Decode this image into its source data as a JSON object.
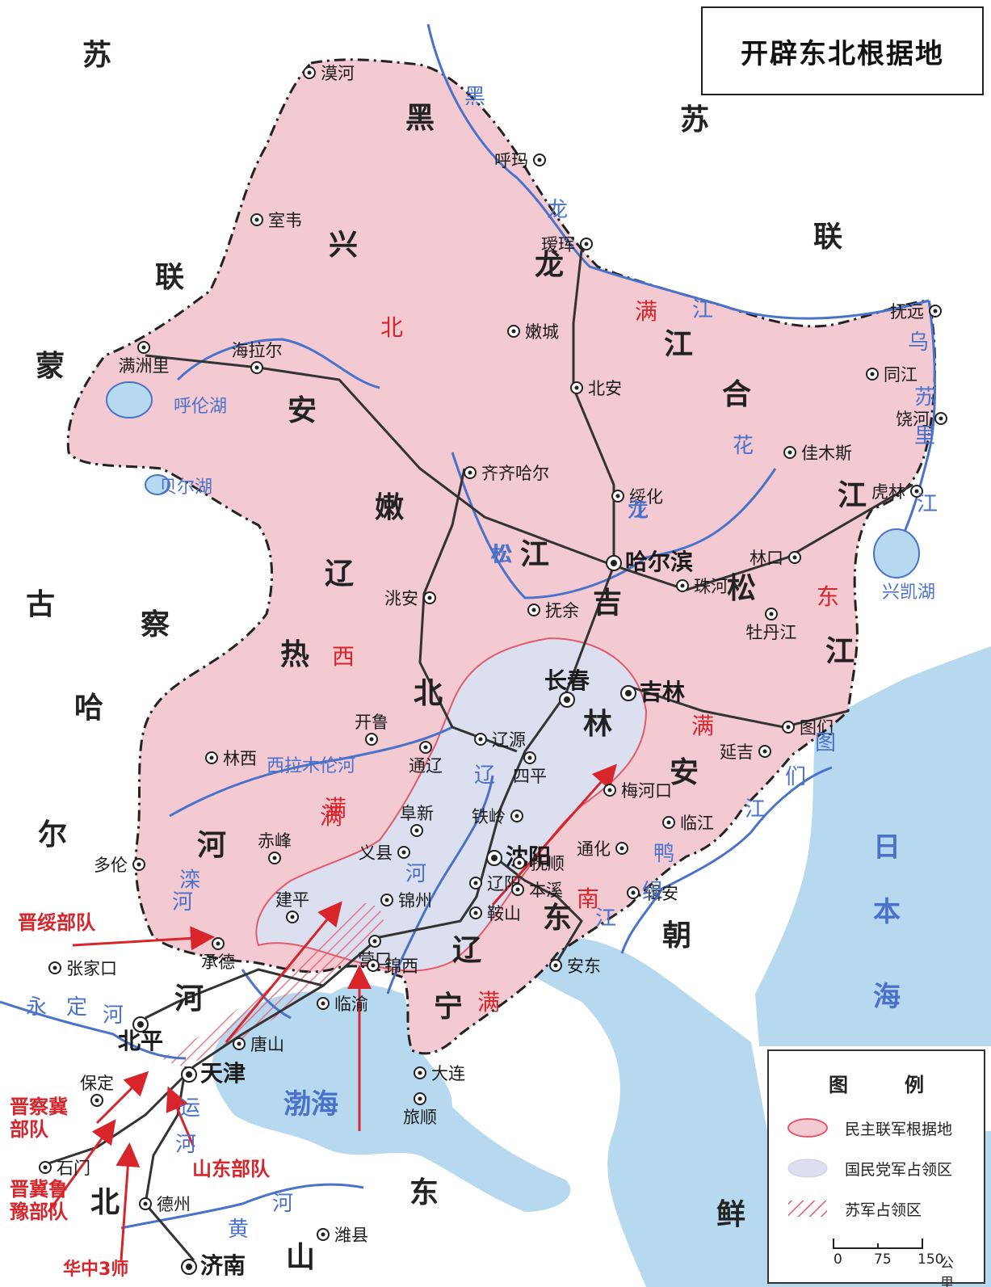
{
  "title": "开辟东北根据地",
  "regions": {
    "su_lian": [
      "苏",
      "苏",
      "联",
      "联"
    ],
    "meng_gu": [
      "蒙",
      "古"
    ],
    "heilongjiang": [
      "黑",
      "龙",
      "江"
    ],
    "xing_an": [
      "兴",
      "安"
    ],
    "nenjiang": [
      "嫩",
      "江"
    ],
    "hejiang": [
      "合",
      "江"
    ],
    "songjiang": [
      "松",
      "江"
    ],
    "liaobei": [
      "辽",
      "北"
    ],
    "jilin": [
      "吉",
      "林"
    ],
    "liaoning": [
      "辽",
      "宁"
    ],
    "antung": [
      "安",
      "东"
    ],
    "rehe": [
      "热",
      "河"
    ],
    "chahar": [
      "察",
      "哈",
      "尔"
    ],
    "hebei": [
      "河",
      "北"
    ],
    "shandong": [
      "山",
      "东"
    ],
    "chaoxian": [
      "朝",
      "鲜"
    ]
  },
  "area_notes": [
    "北",
    "满",
    "西",
    "满",
    "满",
    "东",
    "满",
    "南",
    "满"
  ],
  "rivers": [
    "黑",
    "龙",
    "江",
    "乌",
    "苏",
    "里",
    "江",
    "松",
    "花",
    "江",
    "龙",
    "松",
    "图",
    "们",
    "江",
    "鸭",
    "绿",
    "江",
    "辽",
    "河",
    "滦",
    "河",
    "永",
    "定",
    "河",
    "西拉木伦河",
    "呼伦湖",
    "贝尔湖",
    "兴凯湖",
    "渤海",
    "日",
    "本",
    "海",
    "黄",
    "河",
    "运",
    "河"
  ],
  "cities": [
    {
      "name": "漠河"
    },
    {
      "name": "呼玛"
    },
    {
      "name": "室韦"
    },
    {
      "name": "瑷珲"
    },
    {
      "name": "海拉尔"
    },
    {
      "name": "满洲里"
    },
    {
      "name": "嫩城"
    },
    {
      "name": "北安"
    },
    {
      "name": "抚远"
    },
    {
      "name": "同江"
    },
    {
      "name": "饶河"
    },
    {
      "name": "佳木斯"
    },
    {
      "name": "虎林"
    },
    {
      "name": "齐齐哈尔"
    },
    {
      "name": "绥化"
    },
    {
      "name": "哈尔滨"
    },
    {
      "name": "林口"
    },
    {
      "name": "珠河"
    },
    {
      "name": "洮安"
    },
    {
      "name": "抚余"
    },
    {
      "name": "牡丹江"
    },
    {
      "name": "长春"
    },
    {
      "name": "吉林"
    },
    {
      "name": "图们"
    },
    {
      "name": "延吉"
    },
    {
      "name": "开鲁"
    },
    {
      "name": "林西"
    },
    {
      "name": "通辽"
    },
    {
      "name": "辽源"
    },
    {
      "name": "四平"
    },
    {
      "name": "梅河口"
    },
    {
      "name": "铁岭"
    },
    {
      "name": "临江"
    },
    {
      "name": "赤峰"
    },
    {
      "name": "阜新"
    },
    {
      "name": "义县"
    },
    {
      "name": "沈阳"
    },
    {
      "name": "抚顺"
    },
    {
      "name": "通化"
    },
    {
      "name": "多伦"
    },
    {
      "name": "建平"
    },
    {
      "name": "辽阳"
    },
    {
      "name": "本溪"
    },
    {
      "name": "辑安"
    },
    {
      "name": "锦州"
    },
    {
      "name": "鞍山"
    },
    {
      "name": "承德"
    },
    {
      "name": "营口"
    },
    {
      "name": "锦西"
    },
    {
      "name": "安东"
    },
    {
      "name": "张家口"
    },
    {
      "name": "临渝"
    },
    {
      "name": "北平"
    },
    {
      "name": "唐山"
    },
    {
      "name": "保定"
    },
    {
      "name": "天津"
    },
    {
      "name": "大连"
    },
    {
      "name": "旅顺"
    },
    {
      "name": "石门"
    },
    {
      "name": "德州"
    },
    {
      "name": "潍县"
    },
    {
      "name": "济南"
    }
  ],
  "troops": [
    {
      "name": "晋绥部队"
    },
    {
      "name": "晋察冀部队"
    },
    {
      "name": "晋冀鲁豫部队"
    },
    {
      "name": "山东部队"
    },
    {
      "name": "华中3师"
    }
  ],
  "legend": {
    "title": [
      "图",
      "例"
    ],
    "items": [
      {
        "label": "民主联军根据地"
      },
      {
        "label": "国民党军占领区"
      },
      {
        "label": "苏军占领区"
      }
    ],
    "scale": {
      "ticks": [
        "0",
        "75",
        "150"
      ],
      "unit": "公里"
    }
  },
  "colors": {
    "base_pink": "#f3c9d2",
    "kmt_blue": "#dcdff0",
    "sea": "#b7d9ef",
    "river": "#4a72c9",
    "railway": "#333333",
    "arrow": "#d8242b",
    "region_label": "#222222",
    "area_note": "#d8242b"
  }
}
